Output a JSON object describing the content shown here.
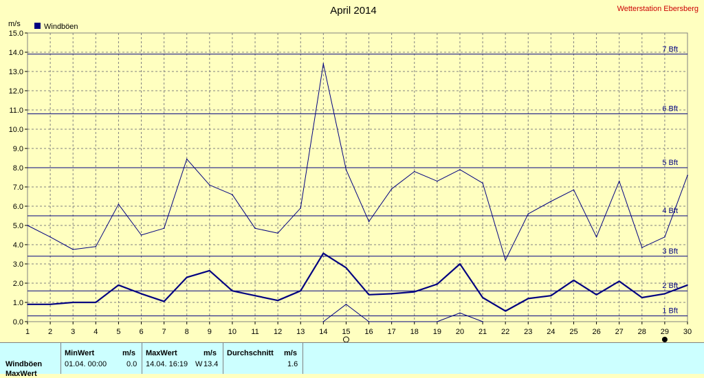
{
  "header": {
    "title": "April 2014",
    "station": "Wetterstation Ebersberg"
  },
  "chart_data": {
    "type": "line",
    "title": "April 2014",
    "ylabel": "m/s",
    "legend": {
      "position": "top-left",
      "entries": [
        "Windböen"
      ]
    },
    "ylim": [
      0,
      15
    ],
    "xlim": [
      1,
      30
    ],
    "grid": true,
    "x_ticks": [
      1,
      2,
      3,
      4,
      5,
      6,
      7,
      8,
      9,
      10,
      11,
      12,
      13,
      14,
      15,
      16,
      17,
      18,
      19,
      20,
      21,
      22,
      23,
      24,
      25,
      26,
      27,
      28,
      29,
      30
    ],
    "y_ticks": [
      "0.0",
      "1.0",
      "2.0",
      "3.0",
      "4.0",
      "5.0",
      "6.0",
      "7.0",
      "8.0",
      "9.0",
      "10.0",
      "11.0",
      "12.0",
      "13.0",
      "14.0",
      "15.0"
    ],
    "beaufort_lines": [
      {
        "label": "1 Bft",
        "value": 0.3
      },
      {
        "label": "2 Bft",
        "value": 1.6
      },
      {
        "label": "3 Bft",
        "value": 3.4
      },
      {
        "label": "4 Bft",
        "value": 5.5
      },
      {
        "label": "5 Bft",
        "value": 8.0
      },
      {
        "label": "6 Bft",
        "value": 10.8
      },
      {
        "label": "7 Bft",
        "value": 13.9
      }
    ],
    "series": [
      {
        "name": "Windböen",
        "style": "max",
        "x": [
          1,
          2,
          3,
          4,
          5,
          6,
          7,
          8,
          9,
          10,
          11,
          12,
          13,
          14,
          15,
          16,
          17,
          18,
          19,
          20,
          21,
          22,
          23,
          24,
          25,
          26,
          27,
          28,
          29,
          30
        ],
        "values": [
          5.0,
          4.4,
          3.75,
          3.9,
          6.1,
          4.5,
          4.85,
          8.45,
          7.1,
          6.6,
          4.85,
          4.6,
          5.9,
          13.4,
          7.9,
          5.2,
          6.9,
          7.8,
          7.3,
          7.9,
          7.2,
          3.2,
          5.6,
          6.25,
          6.85,
          4.4,
          7.3,
          3.85,
          4.4,
          7.6
        ]
      },
      {
        "name": "Windböen",
        "style": "average",
        "x": [
          1,
          2,
          3,
          4,
          5,
          6,
          7,
          8,
          9,
          10,
          11,
          12,
          13,
          14,
          15,
          16,
          17,
          18,
          19,
          20,
          21,
          22,
          23,
          24,
          25,
          26,
          27,
          28,
          29,
          30
        ],
        "values": [
          0.9,
          0.9,
          1.0,
          1.0,
          1.9,
          1.45,
          1.05,
          2.3,
          2.65,
          1.6,
          1.35,
          1.1,
          1.6,
          3.55,
          2.8,
          1.4,
          1.45,
          1.55,
          1.95,
          3.0,
          1.25,
          0.55,
          1.2,
          1.35,
          2.15,
          1.4,
          2.1,
          1.25,
          1.45,
          1.9
        ]
      },
      {
        "name": "Windböen",
        "style": "min",
        "x": [
          14,
          15,
          16,
          19,
          20,
          21
        ],
        "values": [
          0.0,
          0.9,
          0.0,
          0.0,
          0.45,
          0.0
        ]
      }
    ],
    "colors": {
      "series": "#000080",
      "background": "#ffffc0",
      "grid": "#808080"
    }
  },
  "stats": {
    "row_label": "Windböen",
    "row_label_2": "MaxWert",
    "min_header": "MinWert",
    "max_header": "MaxWert",
    "avg_header": "Durchschnitt",
    "unit": "m/s",
    "min_time": "01.04.  00:00",
    "min_value": "0.0",
    "max_time": "14.04.  16:19",
    "max_dir": "W",
    "max_value": "13.4",
    "avg_value": "1.6"
  }
}
